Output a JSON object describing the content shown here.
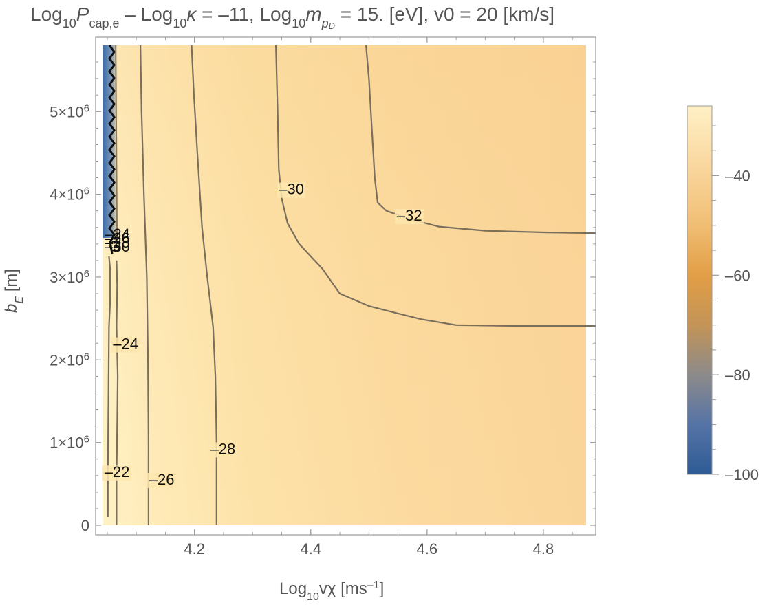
{
  "chart_data": {
    "type": "heatmap",
    "title": {
      "p1": "Log",
      "p1sub": "10",
      "p2": "P",
      "p2sub": "cap,e",
      "p3": " – Log",
      "p3sub": "10",
      "p4": "κ",
      "p5": " = –11, Log",
      "p5sub": "10",
      "p6": "m",
      "p6sub": "p",
      "p6subsub": "D",
      "p7": " = 15. [eV], v0 = 20 [km/s]"
    },
    "xlabel": {
      "a": "Log",
      "asub": "10",
      "b": "vχ [ms",
      "bsup": "–1",
      "c": "]"
    },
    "ylabel": {
      "a": "b",
      "asub": "E",
      "b": " [m]"
    },
    "xlim": [
      4.03,
      4.89
    ],
    "ylim": [
      0,
      5800000
    ],
    "x_ticks": [
      {
        "value": 4.2,
        "label": "4.2"
      },
      {
        "value": 4.4,
        "label": "4.4"
      },
      {
        "value": 4.6,
        "label": "4.6"
      },
      {
        "value": 4.8,
        "label": "4.8"
      }
    ],
    "y_ticks": [
      {
        "value": 0,
        "label": "0"
      },
      {
        "value": 1000000,
        "label": "1×10",
        "sup": "6"
      },
      {
        "value": 2000000,
        "label": "2×10",
        "sup": "6"
      },
      {
        "value": 3000000,
        "label": "3×10",
        "sup": "6"
      },
      {
        "value": 4000000,
        "label": "4×10",
        "sup": "6"
      },
      {
        "value": 5000000,
        "label": "5×10",
        "sup": "6"
      }
    ],
    "colorbar": {
      "range": [
        -100,
        -26
      ],
      "ticks": [
        {
          "value": -40,
          "label": "–40"
        },
        {
          "value": -60,
          "label": "–60"
        },
        {
          "value": -80,
          "label": "–80"
        },
        {
          "value": -100,
          "label": "–100"
        }
      ],
      "stops": [
        {
          "value": -100,
          "color": "#2e5b95"
        },
        {
          "value": -90,
          "color": "#5573a6"
        },
        {
          "value": -80,
          "color": "#8c8a8a"
        },
        {
          "value": -70,
          "color": "#c39457"
        },
        {
          "value": -60,
          "color": "#e29e45"
        },
        {
          "value": -50,
          "color": "#f0be74"
        },
        {
          "value": -40,
          "color": "#f8d398"
        },
        {
          "value": -26,
          "color": "#fff0c6"
        }
      ]
    },
    "contours": [
      {
        "level": -22,
        "label": "–22",
        "points": [
          [
            4.051,
            100000
          ],
          [
            4.051,
            700000
          ],
          [
            4.052,
            1500000
          ],
          [
            4.053,
            2400000
          ],
          [
            4.055,
            2700000
          ],
          [
            4.055,
            3100000
          ],
          [
            4.053,
            3250000
          ]
        ],
        "label_at": [
          4.045,
          580000
        ]
      },
      {
        "level": -24,
        "label": "–24",
        "points": [
          [
            4.066,
            0
          ],
          [
            4.066,
            600000
          ],
          [
            4.067,
            1200000
          ],
          [
            4.068,
            1800000
          ],
          [
            4.066,
            2400000
          ],
          [
            4.067,
            2900000
          ],
          [
            4.066,
            3200000
          ]
        ],
        "label_at": [
          4.06,
          2130000
        ]
      },
      {
        "level": -26,
        "label": "–26",
        "points": [
          [
            4.121,
            0
          ],
          [
            4.121,
            1000000
          ],
          [
            4.12,
            2000000
          ],
          [
            4.118,
            3000000
          ],
          [
            4.113,
            4000000
          ],
          [
            4.109,
            5000000
          ],
          [
            4.107,
            5800000
          ]
        ],
        "label_at": [
          4.122,
          490000
        ]
      },
      {
        "level": -28,
        "label": "–28",
        "points": [
          [
            4.238,
            0
          ],
          [
            4.238,
            1000000
          ],
          [
            4.236,
            1800000
          ],
          [
            4.232,
            2400000
          ],
          [
            4.222,
            3000000
          ],
          [
            4.213,
            3600000
          ],
          [
            4.205,
            4500000
          ],
          [
            4.199,
            5200000
          ],
          [
            4.195,
            5800000
          ]
        ],
        "label_at": [
          4.227,
          860000
        ]
      },
      {
        "level": -30,
        "label": "–30",
        "points": [
          [
            4.89,
            2410000
          ],
          [
            4.75,
            2410000
          ],
          [
            4.65,
            2420000
          ],
          [
            4.59,
            2490000
          ],
          [
            4.55,
            2560000
          ],
          [
            4.5,
            2650000
          ],
          [
            4.45,
            2800000
          ],
          [
            4.42,
            3100000
          ],
          [
            4.4,
            3250000
          ],
          [
            4.38,
            3400000
          ],
          [
            4.36,
            3650000
          ],
          [
            4.35,
            3950000
          ],
          [
            4.345,
            4300000
          ],
          [
            4.343,
            5000000
          ],
          [
            4.34,
            5800000
          ]
        ],
        "label_at": [
          4.345,
          4000000
        ]
      },
      {
        "level": -32,
        "label": "–32",
        "points": [
          [
            4.89,
            3530000
          ],
          [
            4.8,
            3540000
          ],
          [
            4.7,
            3560000
          ],
          [
            4.62,
            3610000
          ],
          [
            4.57,
            3700000
          ],
          [
            4.53,
            3800000
          ],
          [
            4.515,
            3900000
          ],
          [
            4.51,
            4200000
          ],
          [
            4.505,
            4800000
          ],
          [
            4.5,
            5400000
          ],
          [
            4.495,
            5800000
          ]
        ],
        "label_at": [
          4.548,
          3680000
        ]
      }
    ],
    "singular_labels": [
      "–24",
      "–26",
      "–28",
      "–30"
    ],
    "grid": false,
    "legend": "colorbar-right"
  }
}
